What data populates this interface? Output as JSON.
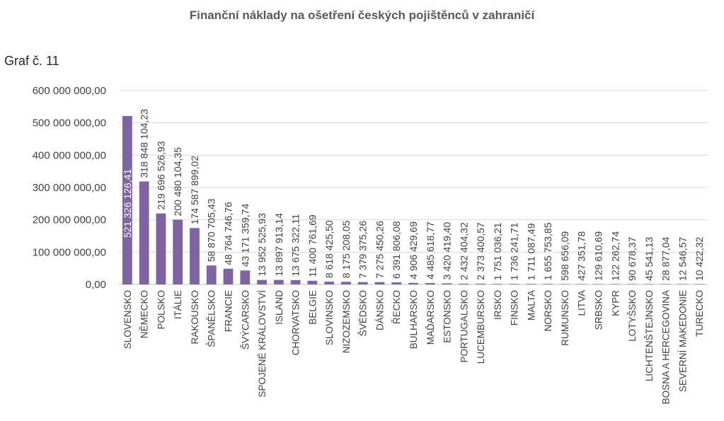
{
  "caption": "Graf č. 11",
  "chart_data": {
    "type": "bar",
    "title": "Finanční náklady na ošetření českých pojištěnců v zahraničí",
    "xlabel": "",
    "ylabel": "",
    "ylim": [
      0,
      600000000
    ],
    "yticks": [
      0,
      100000000,
      200000000,
      300000000,
      400000000,
      500000000,
      600000000
    ],
    "ytick_labels": [
      "0,00",
      "100 000 000,00",
      "200 000 000,00",
      "300 000 000,00",
      "400 000 000,00",
      "500 000 000,00",
      "600 000 000,00"
    ],
    "grid": true,
    "bar_color": "#8064a2",
    "categories": [
      "SLOVENSKO",
      "NĚMECKO",
      "POLSKO",
      "ITÁLIE",
      "RAKOUSKO",
      "ŠPANĚLSKO",
      "FRANCIE",
      "ŠVÝCARSKO",
      "SPOJENÉ KRÁLOVSTVÍ",
      "ISLAND",
      "CHORVATSKO",
      "BELGIE",
      "SLOVINSKO",
      "NIZOZEMSKO",
      "ŠVÉDSKO",
      "DÁNSKO",
      "ŘECKO",
      "BULHARSKO",
      "MAĎARSKO",
      "ESTONSKO",
      "PORTUGALSKO",
      "LUCEMBURSKO",
      "IRSKO",
      "FINSKO",
      "MALTA",
      "NORSKO",
      "RUMUNSKO",
      "LITVA",
      "SRBSKO",
      "KYPR",
      "LOTYŠSKO",
      "LICHTENŠTEJNSKO",
      "BOSNA A HERCEGOVINA",
      "SEVERNÍ MAKEDONIE",
      "TURECKO"
    ],
    "values": [
      521326126.41,
      318848104.23,
      219696526.93,
      200480104.35,
      174587899.02,
      58870705.43,
      48764746.76,
      43171359.74,
      13952525.93,
      13897913.14,
      13675322.11,
      11400761.69,
      8618425.5,
      8175208.05,
      7379375.26,
      7275450.26,
      6391806.08,
      4906429.69,
      4485618.77,
      3420419.4,
      2432404.32,
      2373400.57,
      1751036.21,
      1736241.71,
      1711087.49,
      1655753.85,
      598656.09,
      427351.78,
      129610.69,
      122262.74,
      90678.37,
      45541.13,
      28877.04,
      12546.57,
      10422.32
    ],
    "data_labels": [
      "521 326 126,41",
      "318 848 104,23",
      "219 696 526,93",
      "200 480 104,35",
      "174 587 899,02",
      "58 870 705,43",
      "48 764 746,76",
      "43 171 359,74",
      "13 952 525,93",
      "13 897 913,14",
      "13 675 322,11",
      "11 400 761,69",
      "8 618 425,50",
      "8 175 208,05",
      "7 379 375,26",
      "7 275 450,26",
      "6 391 806,08",
      "4 906 429,69",
      "4 485 618,77",
      "3 420 419,40",
      "2 432 404,32",
      "2 373 400,57",
      "1 751 036,21",
      "1 736 241,71",
      "1 711 087,49",
      "1 655 753,85",
      "598 656,09",
      "427 351,78",
      "129 610,69",
      "122 262,74",
      "90 678,37",
      "45 541,13",
      "28 877,04",
      "12 546,57",
      "10 422,32"
    ]
  }
}
